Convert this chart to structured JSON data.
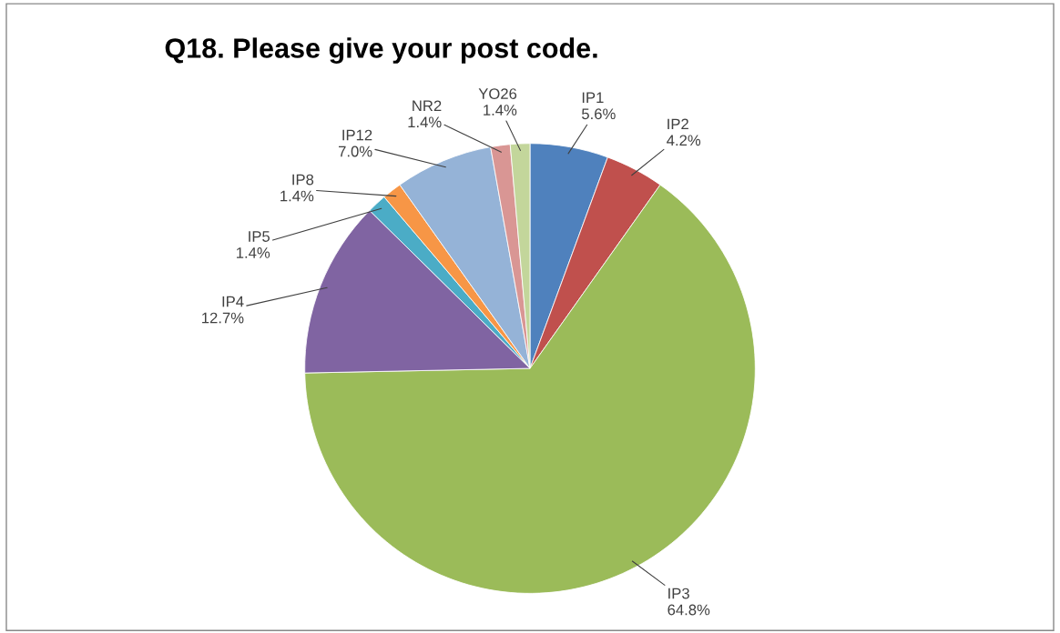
{
  "chart_data": {
    "type": "pie",
    "title": "Q18. Please give your post code.",
    "categories": [
      "IP1",
      "IP2",
      "IP3",
      "IP4",
      "IP5",
      "IP8",
      "IP12",
      "NR2",
      "YO26"
    ],
    "values": [
      5.6,
      4.2,
      64.8,
      12.7,
      1.4,
      1.4,
      7.0,
      1.4,
      1.4
    ],
    "value_labels": [
      "5.6%",
      "4.2%",
      "64.8%",
      "12.7%",
      "1.4%",
      "1.4%",
      "7.0%",
      "1.4%",
      "1.4%"
    ],
    "colors": [
      "#4f81bd",
      "#c0504d",
      "#9bbb59",
      "#8064a2",
      "#4bacc6",
      "#f79646",
      "#95b3d7",
      "#d99694",
      "#c3d69b"
    ],
    "legend": false
  }
}
